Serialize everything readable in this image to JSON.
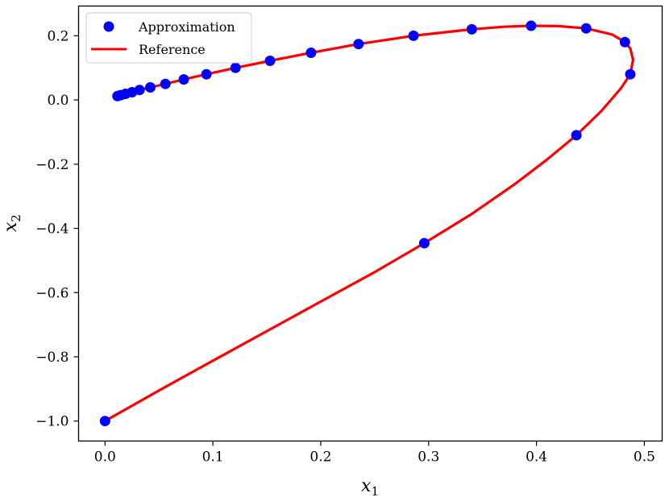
{
  "chart_data": {
    "type": "line",
    "xlabel": {
      "base": "x",
      "sub": "1"
    },
    "ylabel": {
      "base": "x",
      "sub": "2"
    },
    "xlim": [
      -0.0245,
      0.5165
    ],
    "ylim": [
      -1.0622,
      0.2925
    ],
    "xticks": [
      0.0,
      0.1,
      0.2,
      0.3,
      0.4,
      0.5
    ],
    "xtick_labels": [
      "0.0",
      "0.1",
      "0.2",
      "0.3",
      "0.4",
      "0.5"
    ],
    "yticks": [
      -1.0,
      -0.8,
      -0.6,
      -0.4,
      -0.2,
      0.0,
      0.2
    ],
    "ytick_labels": [
      "−1.0",
      "−0.8",
      "−0.6",
      "−0.4",
      "−0.2",
      "0.0",
      "0.2"
    ],
    "grid": false,
    "legend": {
      "position": "top-left"
    },
    "series": [
      {
        "name": "Approximation",
        "kind": "scatter",
        "color": "#0000ff",
        "x": [
          0.0,
          0.296,
          0.437,
          0.487,
          0.482,
          0.446,
          0.395,
          0.34,
          0.286,
          0.235,
          0.191,
          0.153,
          0.121,
          0.094,
          0.073,
          0.056,
          0.042,
          0.032,
          0.025,
          0.019,
          0.0145,
          0.0115
        ],
        "y": [
          -1.0,
          -0.446,
          -0.11,
          0.08,
          0.18,
          0.223,
          0.231,
          0.22,
          0.2,
          0.174,
          0.147,
          0.122,
          0.1,
          0.08,
          0.064,
          0.05,
          0.039,
          0.031,
          0.024,
          0.019,
          0.015,
          0.012
        ]
      },
      {
        "name": "Reference",
        "kind": "line",
        "color": "#ff0000",
        "x": [
          0.0,
          0.05,
          0.1,
          0.15,
          0.2,
          0.25,
          0.296,
          0.34,
          0.38,
          0.41,
          0.437,
          0.46,
          0.478,
          0.487,
          0.4895,
          0.487,
          0.482,
          0.47,
          0.446,
          0.42,
          0.395,
          0.37,
          0.34,
          0.286,
          0.235,
          0.191,
          0.153,
          0.121,
          0.094,
          0.073,
          0.056,
          0.042,
          0.032,
          0.025,
          0.019,
          0.0145
        ],
        "y": [
          -1.0,
          -0.905,
          -0.812,
          -0.72,
          -0.628,
          -0.536,
          -0.446,
          -0.355,
          -0.262,
          -0.185,
          -0.11,
          -0.035,
          0.035,
          0.08,
          0.125,
          0.16,
          0.18,
          0.204,
          0.223,
          0.23,
          0.231,
          0.228,
          0.22,
          0.2,
          0.174,
          0.147,
          0.122,
          0.1,
          0.08,
          0.064,
          0.05,
          0.039,
          0.031,
          0.024,
          0.019,
          0.015
        ]
      }
    ]
  }
}
